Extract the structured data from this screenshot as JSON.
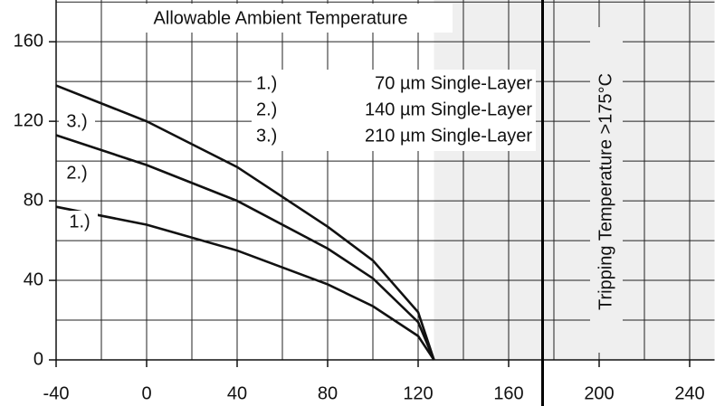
{
  "chart_data": {
    "type": "line",
    "title": "Allowable Ambient Temperature",
    "xlim": [
      -40,
      251
    ],
    "ylim": [
      0,
      181
    ],
    "xticks": [
      -40,
      0,
      40,
      80,
      120,
      160,
      200,
      240
    ],
    "yticks": [
      0,
      40,
      80,
      120,
      160
    ],
    "xminor": [
      -20,
      20,
      60,
      100,
      140,
      180,
      220
    ],
    "yminor": [
      20,
      60,
      100,
      140,
      180
    ],
    "grid": true,
    "shaded_from": 127,
    "limit_line": {
      "x": 175,
      "label": "Tripping Temperature >175°C"
    },
    "series": [
      {
        "key": "1.)",
        "name": "70 µm Single-Layer",
        "color": "#111111",
        "x": [
          -40,
          0,
          40,
          80,
          100,
          120,
          127
        ],
        "values": [
          77,
          68,
          55,
          38,
          27,
          12,
          0
        ]
      },
      {
        "key": "2.)",
        "name": "140 µm Single-Layer",
        "color": "#111111",
        "x": [
          -40,
          0,
          40,
          80,
          100,
          120,
          127
        ],
        "values": [
          113,
          98,
          80,
          56,
          41,
          19,
          0
        ]
      },
      {
        "key": "3.)",
        "name": "210 µm Single-Layer",
        "color": "#111111",
        "x": [
          -40,
          0,
          40,
          80,
          100,
          120,
          127
        ],
        "values": [
          138,
          120,
          97,
          67,
          50,
          24,
          0
        ]
      }
    ]
  }
}
